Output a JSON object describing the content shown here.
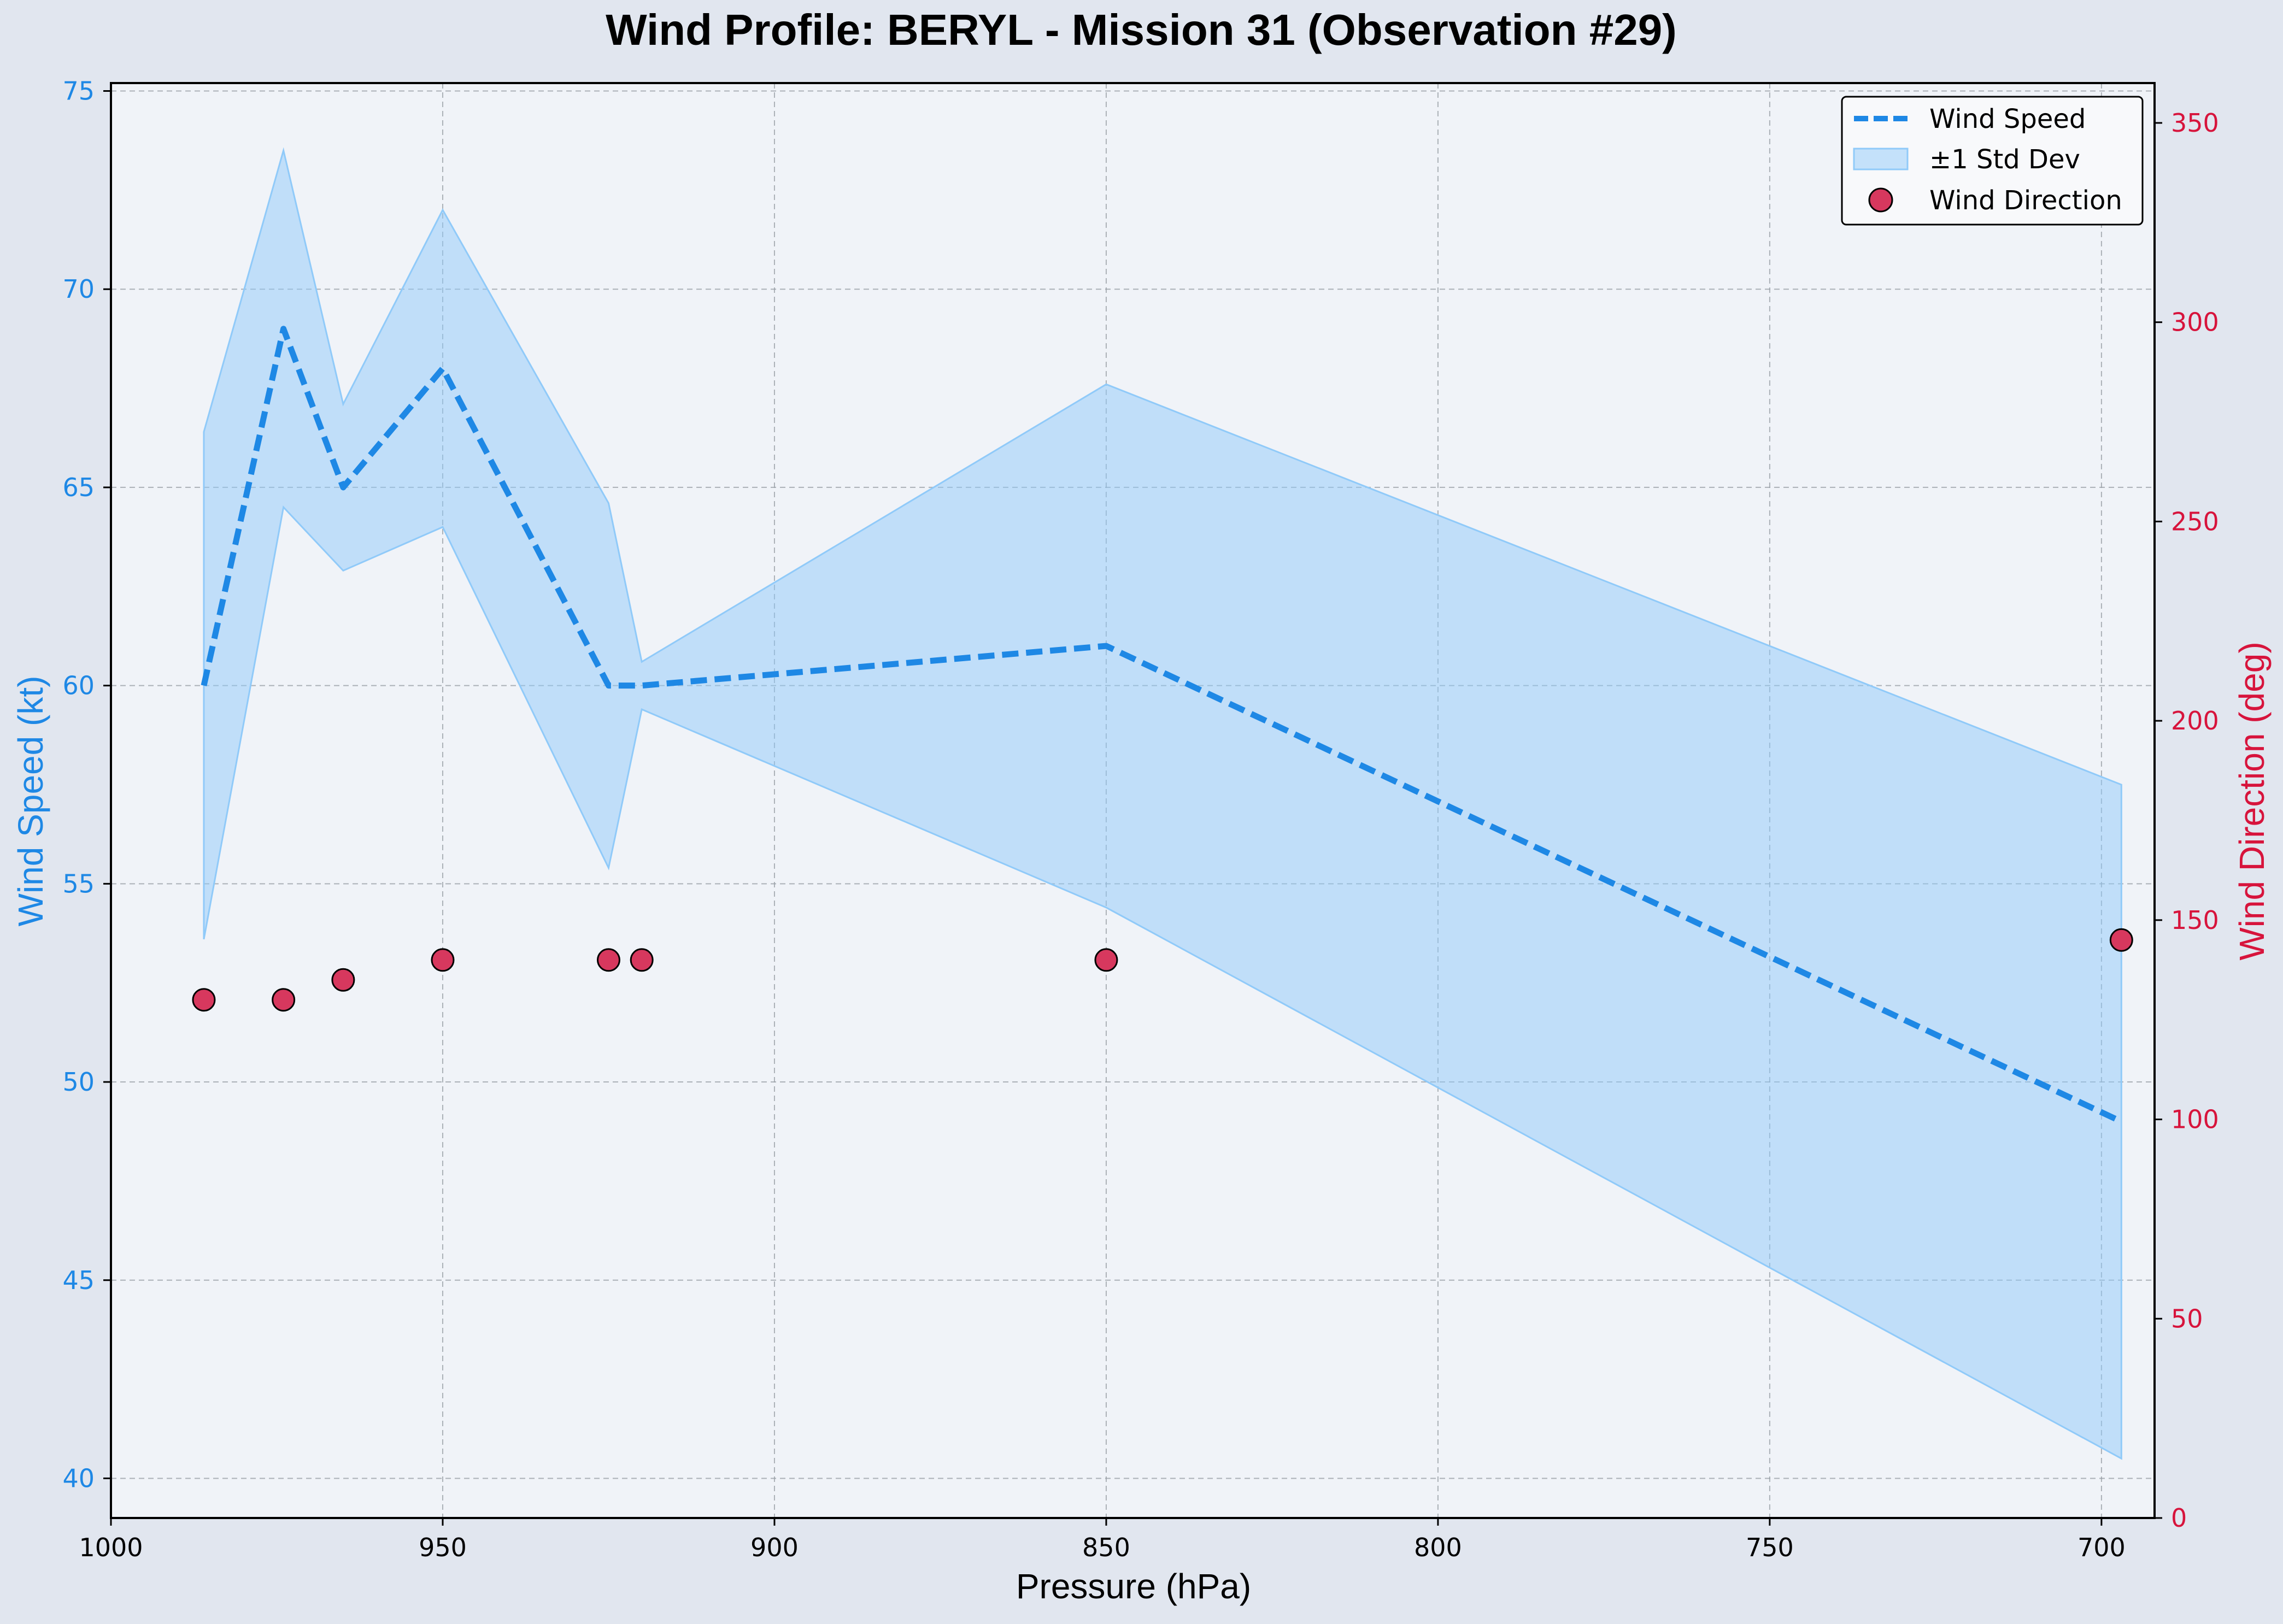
{
  "chart_data": {
    "type": "line",
    "title": "Wind Profile: BERYL - Mission 31 (Observation #29)",
    "xlabel": "Pressure (hPa)",
    "ylabel_left": "Wind Speed (kt)",
    "ylabel_right": "Wind Direction (deg)",
    "x_inverted": true,
    "xlim": [
      1000,
      692
    ],
    "ylim_left": [
      39,
      75.2
    ],
    "ylim_right": [
      0,
      360
    ],
    "x_ticks": [
      "1000",
      "950",
      "900",
      "850",
      "800",
      "750",
      "700"
    ],
    "y_left_ticks": [
      "40",
      "45",
      "50",
      "55",
      "60",
      "65",
      "70",
      "75"
    ],
    "y_right_ticks": [
      "0",
      "50",
      "100",
      "150",
      "200",
      "250",
      "300",
      "350"
    ],
    "grid": true,
    "legend_position": "top-right",
    "colors": {
      "speed": "#1e88e5",
      "band": "#90caf9",
      "direction": "#d7385e",
      "direction_axis": "#d7143c",
      "plot_bg": "#f0f3f8",
      "figure_bg": "#e1e6ef"
    },
    "series": [
      {
        "name": "Wind Speed",
        "kind": "line-dashed",
        "axis": "left",
        "x": [
          986,
          974,
          965,
          950,
          925,
          920,
          850,
          697
        ],
        "values": [
          60,
          69,
          65,
          68,
          60,
          60,
          61,
          49
        ]
      },
      {
        "name": "±1 Std Dev",
        "kind": "band",
        "axis": "left",
        "x": [
          986,
          974,
          965,
          950,
          925,
          920,
          850,
          697
        ],
        "lower": [
          53.6,
          64.5,
          62.9,
          64.0,
          55.4,
          59.4,
          54.4,
          40.5
        ],
        "upper": [
          66.4,
          73.5,
          67.1,
          72.0,
          64.6,
          60.6,
          67.6,
          57.5
        ]
      },
      {
        "name": "Wind Direction",
        "kind": "scatter",
        "axis": "right",
        "x": [
          986,
          974,
          965,
          950,
          925,
          920,
          850,
          697
        ],
        "values": [
          130,
          130,
          135,
          140,
          140,
          140,
          140,
          145
        ]
      }
    ]
  }
}
